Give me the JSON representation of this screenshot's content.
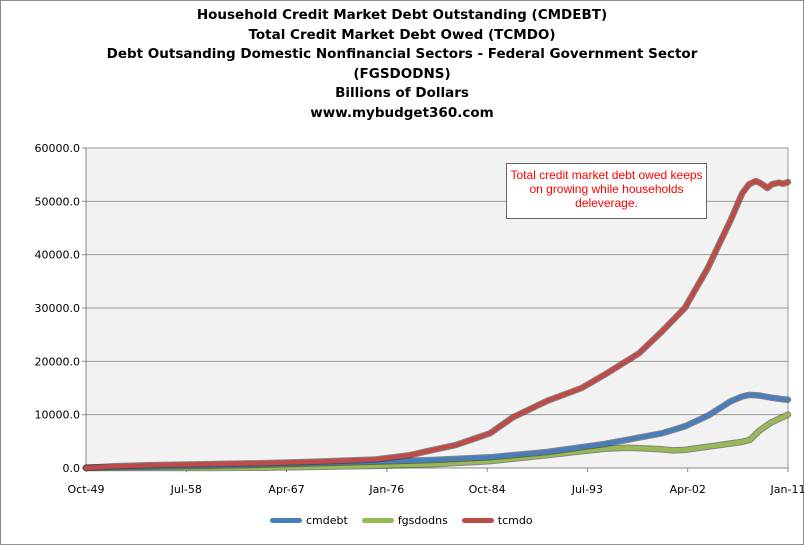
{
  "chart_data": {
    "type": "line",
    "title_lines": [
      "Household Credit Market Debt Outstanding (CMDEBT)",
      "Total Credit Market Debt Owed (TCMDO)",
      "Debt Outsanding Domestic Nonfinancial Sectors - Federal Government Sector",
      "(FGSDODNS)",
      "Billions of  Dollars",
      "www.mybudget360.com"
    ],
    "x_tick_labels": [
      "Oct-49",
      "Jul-58",
      "Apr-67",
      "Jan-76",
      "Oct-84",
      "Jul-93",
      "Apr-02",
      "Jan-11"
    ],
    "y_tick_labels": [
      "0.0",
      "10000.0",
      "20000.0",
      "30000.0",
      "40000.0",
      "50000.0",
      "60000.0"
    ],
    "ylim": [
      0,
      60000
    ],
    "xlim": [
      1949.75,
      2011.0
    ],
    "grid": "horizontal",
    "legend_position": "bottom",
    "annotation": "Total credit market debt owed keeps on growing while households deleverage.",
    "annotation_color": "#ff0000",
    "plot_background": "#f2f2f2",
    "series": [
      {
        "name": "cmdebt",
        "color": "#4a7ebb",
        "x": [
          1949.75,
          1955,
          1960,
          1965,
          1970,
          1975,
          1980,
          1985,
          1990,
          1995,
          2000,
          2002,
          2004,
          2006,
          2007,
          2007.6,
          2008.5,
          2009.5,
          2010.5,
          2011
        ],
        "y": [
          100,
          250,
          400,
          600,
          900,
          1200,
          1500,
          2000,
          3000,
          4500,
          6500,
          7800,
          9800,
          12500,
          13400,
          13700,
          13600,
          13200,
          12900,
          12800
        ]
      },
      {
        "name": "fgsdodns",
        "color": "#98b954",
        "x": [
          1949.75,
          1955,
          1960,
          1965,
          1970,
          1975,
          1980,
          1985,
          1990,
          1992,
          1995,
          1997,
          2000,
          2001,
          2002,
          2004,
          2006,
          2007,
          2007.7,
          2008.5,
          2009.5,
          2010.5,
          2011
        ],
        "y": [
          0,
          0,
          0,
          50,
          200,
          400,
          700,
          1300,
          2400,
          2900,
          3600,
          3800,
          3500,
          3300,
          3400,
          4000,
          4600,
          4900,
          5300,
          7000,
          8500,
          9500,
          10000
        ]
      },
      {
        "name": "tcmdo",
        "color": "#be4b48",
        "x": [
          1949.75,
          1952,
          1955,
          1960,
          1965,
          1970,
          1975,
          1978,
          1980,
          1982,
          1985,
          1987,
          1990,
          1993,
          1995,
          1998,
          2000,
          2002,
          2004,
          2005,
          2006,
          2007,
          2007.6,
          2008.2,
          2008.6,
          2009.2,
          2009.6,
          2010.2,
          2010.6,
          2011
        ],
        "y": [
          0,
          300,
          500,
          700,
          900,
          1200,
          1600,
          2400,
          3400,
          4300,
          6500,
          9500,
          12600,
          15000,
          17500,
          21500,
          25600,
          30000,
          37500,
          42000,
          46500,
          51500,
          53200,
          53800,
          53400,
          52500,
          53200,
          53500,
          53300,
          53600
        ]
      }
    ]
  }
}
